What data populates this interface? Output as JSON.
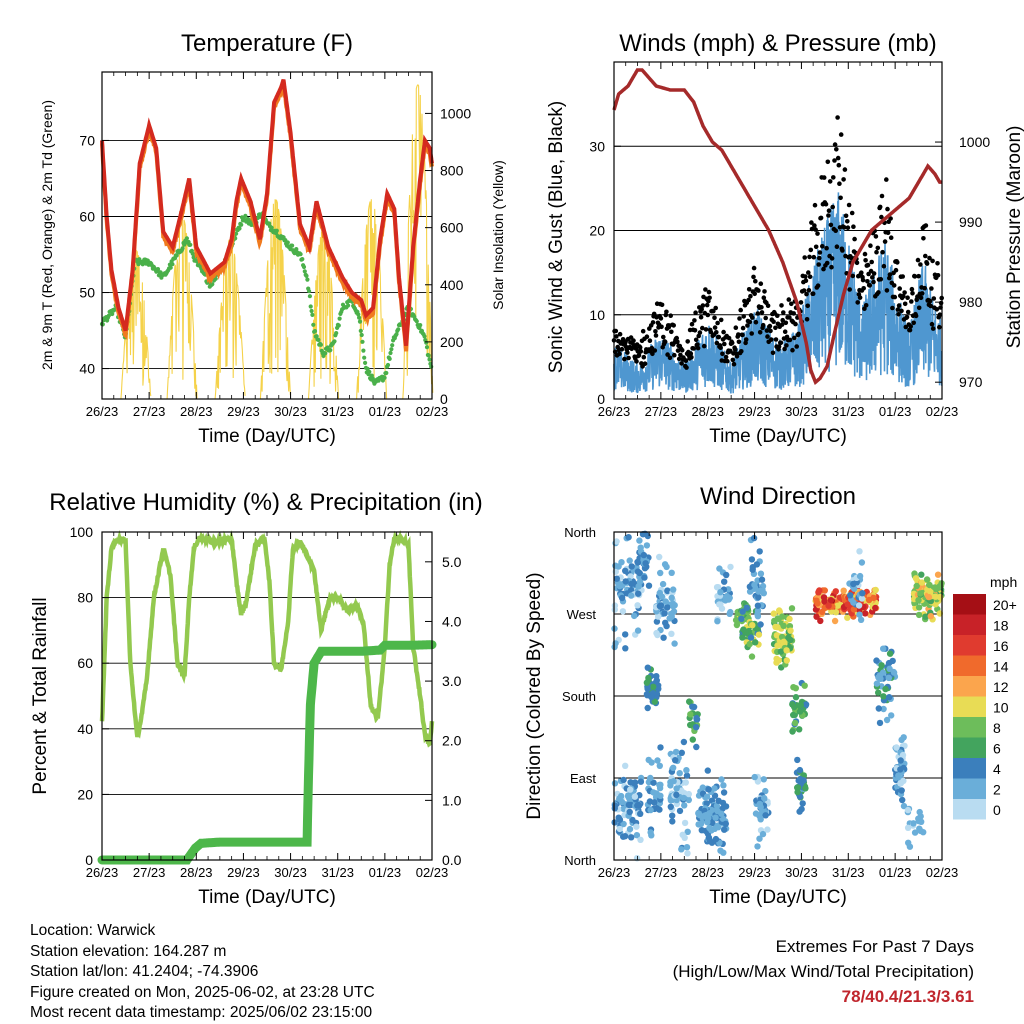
{
  "colors": {
    "red_2m": "#d42a1f",
    "orange_9m": "#f07a1e",
    "green_td": "#4ab04a",
    "solar_yellow": "#f5d24a",
    "wind_blue": "#4f97d0",
    "gust_black": "#000000",
    "pressure_maroon": "#a52a2a",
    "rh_lightgreen": "#93c94f",
    "precip_green": "#4db74a",
    "extremes_red": "#c0262d"
  },
  "info": {
    "location": "Location: Warwick",
    "elevation": "Station elevation: 164.287 m",
    "latlon": "Station lat/lon: 41.2404; -74.3906",
    "created": "Figure created on Mon, 2025-06-02, at 23:28 UTC",
    "latest": "Most recent data timestamp: 2025/06/02 23:15:00"
  },
  "extremes": {
    "line1": "Extremes For Past 7 Days",
    "line2": "(High/Low/Max Wind/Total Precipitation)",
    "values": "78/40.4/21.3/3.61"
  },
  "chart_data": [
    {
      "id": "temperature",
      "type": "line",
      "title": "Temperature (F)",
      "xlabel": "Time (Day/UTC)",
      "ylabel": "2m & 9m T (Red, Orange) & 2m Td (Green)",
      "y2label": "Solar Insolation (Yellow)",
      "x_ticks": [
        "26/23",
        "27/23",
        "28/23",
        "29/23",
        "30/23",
        "31/23",
        "01/23",
        "02/23"
      ],
      "xlim": [
        0,
        7
      ],
      "ylim": [
        36,
        79
      ],
      "y_ticks": [
        40,
        50,
        60,
        70
      ],
      "y2lim": [
        0,
        1145
      ],
      "y2_ticks": [
        0,
        200,
        400,
        600,
        800,
        1000
      ],
      "grid": true,
      "series": [
        {
          "name": "2m T",
          "axis": "left",
          "x": [
            0,
            0.1,
            0.2,
            0.35,
            0.5,
            0.65,
            0.8,
            1.0,
            1.15,
            1.3,
            1.5,
            1.7,
            1.85,
            2.0,
            2.3,
            2.6,
            2.75,
            2.85,
            2.95,
            3.15,
            3.35,
            3.5,
            3.65,
            3.8,
            3.85,
            4.0,
            4.2,
            4.4,
            4.55,
            4.8,
            5.1,
            5.3,
            5.5,
            5.6,
            5.75,
            5.9,
            6.05,
            6.2,
            6.3,
            6.45,
            6.6,
            6.75,
            6.85,
            6.95,
            7.0
          ],
          "y": [
            70,
            60,
            53,
            48,
            45,
            53,
            67,
            72,
            69,
            58,
            56,
            61,
            65,
            56,
            52.5,
            54,
            57,
            62,
            65,
            62,
            57,
            63,
            75,
            77,
            78,
            71,
            59,
            56,
            62,
            56,
            52,
            50,
            49,
            47,
            48,
            57,
            63,
            61,
            52,
            43,
            56,
            65,
            70,
            69,
            67
          ]
        },
        {
          "name": "Td",
          "axis": "left",
          "x": [
            0,
            0.3,
            0.5,
            0.7,
            1.0,
            1.3,
            1.6,
            1.8,
            2.0,
            2.3,
            2.6,
            2.8,
            3.0,
            3.2,
            3.4,
            3.5,
            3.7,
            3.85,
            4.0,
            4.2,
            4.35,
            4.5,
            4.7,
            4.9,
            5.1,
            5.3,
            5.45,
            5.6,
            5.8,
            6.0,
            6.2,
            6.35,
            6.5,
            6.7,
            6.85,
            6.95,
            7.0
          ],
          "y": [
            46,
            48,
            44,
            54,
            54,
            52,
            55,
            57,
            54,
            51,
            54,
            57,
            60,
            59,
            60.5,
            59,
            58,
            57,
            56,
            55,
            52,
            45,
            42,
            43,
            48,
            49,
            47,
            40,
            38,
            39,
            44,
            46,
            48,
            46,
            44,
            41,
            40
          ]
        },
        {
          "name": "Solar",
          "axis": "right",
          "peaks": [
            {
              "center": 0.72,
              "max": 520
            },
            {
              "center": 1.7,
              "max": 640
            },
            {
              "center": 2.72,
              "max": 560
            },
            {
              "center": 3.68,
              "max": 700
            },
            {
              "center": 4.7,
              "max": 600
            },
            {
              "center": 5.72,
              "max": 700
            },
            {
              "center": 6.7,
              "max": 1100
            }
          ]
        }
      ]
    },
    {
      "id": "wind",
      "type": "scatter",
      "title": "Winds (mph) & Pressure (mb)",
      "xlabel": "Time (Day/UTC)",
      "ylabel": "Sonic Wind & Gust (Blue, Black)",
      "y2label": "Station Pressure (Maroon)",
      "x_ticks": [
        "26/23",
        "27/23",
        "28/23",
        "29/23",
        "30/23",
        "31/23",
        "01/23",
        "02/23"
      ],
      "xlim": [
        0,
        7
      ],
      "ylim": [
        0,
        40
      ],
      "y_ticks": [
        0,
        10,
        20,
        30
      ],
      "y2lim": [
        967.9,
        1010
      ],
      "y2_ticks": [
        970,
        980,
        990,
        1000
      ],
      "grid": true,
      "series": [
        {
          "name": "Wind envelope",
          "x": [
            0,
            0.5,
            1.0,
            1.5,
            2.0,
            2.5,
            3.0,
            3.5,
            3.9,
            4.3,
            4.5,
            4.8,
            5.0,
            5.3,
            5.6,
            5.8,
            6.0,
            6.3,
            6.6,
            6.8,
            7.0
          ],
          "y": [
            5,
            3,
            6,
            3,
            7,
            3,
            8,
            5,
            6,
            12,
            15,
            18,
            14,
            8,
            12,
            14,
            10,
            6,
            12,
            9,
            7
          ]
        },
        {
          "name": "Pressure",
          "axis": "right",
          "x": [
            0,
            0.1,
            0.3,
            0.5,
            0.6,
            0.9,
            1.2,
            1.5,
            1.7,
            1.9,
            2.1,
            2.3,
            2.5,
            2.7,
            3.0,
            3.3,
            3.6,
            3.9,
            4.1,
            4.2,
            4.3,
            4.4,
            4.55,
            4.7,
            4.9,
            5.1,
            5.3,
            5.5,
            5.7,
            5.9,
            6.1,
            6.3,
            6.5,
            6.7,
            6.85,
            6.95,
            7.0
          ],
          "y": [
            1004,
            1006,
            1007,
            1009,
            1009,
            1007,
            1006.5,
            1006.5,
            1005,
            1002,
            1000,
            999,
            997,
            995,
            992,
            989,
            985,
            980,
            975,
            971.5,
            970,
            970.5,
            972,
            976,
            981,
            985,
            987,
            989,
            990,
            991,
            992,
            993,
            995,
            997,
            996,
            995,
            995
          ]
        }
      ]
    },
    {
      "id": "rh",
      "type": "line",
      "title": "Relative Humidity (%) & Precipitation (in)",
      "xlabel": "Time (Day/UTC)",
      "ylabel": "Percent & Total Rainfall",
      "x_ticks": [
        "26/23",
        "27/23",
        "28/23",
        "29/23",
        "30/23",
        "31/23",
        "01/23",
        "02/23"
      ],
      "xlim": [
        0,
        7
      ],
      "ylim": [
        0,
        100
      ],
      "y_ticks": [
        0,
        20,
        40,
        60,
        80,
        100
      ],
      "y2lim": [
        0,
        5.5
      ],
      "y2_ticks": [
        "0.0",
        "1.0",
        "2.0",
        "3.0",
        "4.0",
        "5.0"
      ],
      "grid": true,
      "series": [
        {
          "name": "RH",
          "axis": "left",
          "x": [
            0,
            0.1,
            0.2,
            0.35,
            0.5,
            0.6,
            0.75,
            0.85,
            0.95,
            1.1,
            1.3,
            1.45,
            1.6,
            1.75,
            1.85,
            1.95,
            2.05,
            2.2,
            2.35,
            2.55,
            2.75,
            2.85,
            2.95,
            3.05,
            3.25,
            3.45,
            3.55,
            3.65,
            3.8,
            3.95,
            4.05,
            4.2,
            4.35,
            4.5,
            4.65,
            4.75,
            4.85,
            5.0,
            5.2,
            5.4,
            5.55,
            5.7,
            5.85,
            6.0,
            6.1,
            6.2,
            6.35,
            6.5,
            6.6,
            6.75,
            6.85,
            6.95,
            7.0
          ],
          "y": [
            42,
            80,
            95,
            98,
            97,
            60,
            37,
            45,
            55,
            80,
            95,
            87,
            60,
            56,
            80,
            95,
            98,
            98,
            97,
            97,
            98,
            85,
            75,
            78,
            96,
            98,
            85,
            60,
            58,
            73,
            95,
            97,
            93,
            88,
            70,
            76,
            80,
            80,
            76,
            78,
            72,
            47,
            43,
            65,
            90,
            98,
            98,
            96,
            65,
            50,
            38,
            35,
            42
          ]
        },
        {
          "name": "Precip",
          "axis": "right",
          "x": [
            0,
            1.8,
            1.98,
            2.1,
            2.5,
            3.0,
            3.5,
            4.35,
            4.38,
            4.42,
            4.5,
            4.65,
            5.0,
            5.5,
            5.9,
            6.0,
            6.5,
            7.0
          ],
          "y": [
            0,
            0,
            0.2,
            0.28,
            0.3,
            0.3,
            0.3,
            0.3,
            1.4,
            2.6,
            3.3,
            3.5,
            3.5,
            3.5,
            3.52,
            3.6,
            3.6,
            3.61
          ]
        }
      ]
    },
    {
      "id": "direction",
      "type": "scatter",
      "title": "Wind Direction",
      "xlabel": "Time (Day/UTC)",
      "ylabel": "Direction (Colored By Speed)",
      "x_ticks": [
        "26/23",
        "27/23",
        "28/23",
        "29/23",
        "30/23",
        "31/23",
        "01/23",
        "02/23"
      ],
      "xlim": [
        0,
        7
      ],
      "ylim": [
        0,
        360
      ],
      "y_ticks": [
        "North",
        "East",
        "South",
        "West",
        "North"
      ],
      "grid": true,
      "legend_title": "mph",
      "legend_labels": [
        "20+",
        "18",
        "16",
        "14",
        "12",
        "10",
        "8",
        "6",
        "4",
        "2",
        "0"
      ],
      "legend_colors": [
        "#a50f15",
        "#c82228",
        "#e03b2f",
        "#f06a2c",
        "#fba54d",
        "#e8dc55",
        "#6dbd5b",
        "#43a45e",
        "#3b7fbc",
        "#6aaed9",
        "#b9dcf1"
      ]
    }
  ]
}
